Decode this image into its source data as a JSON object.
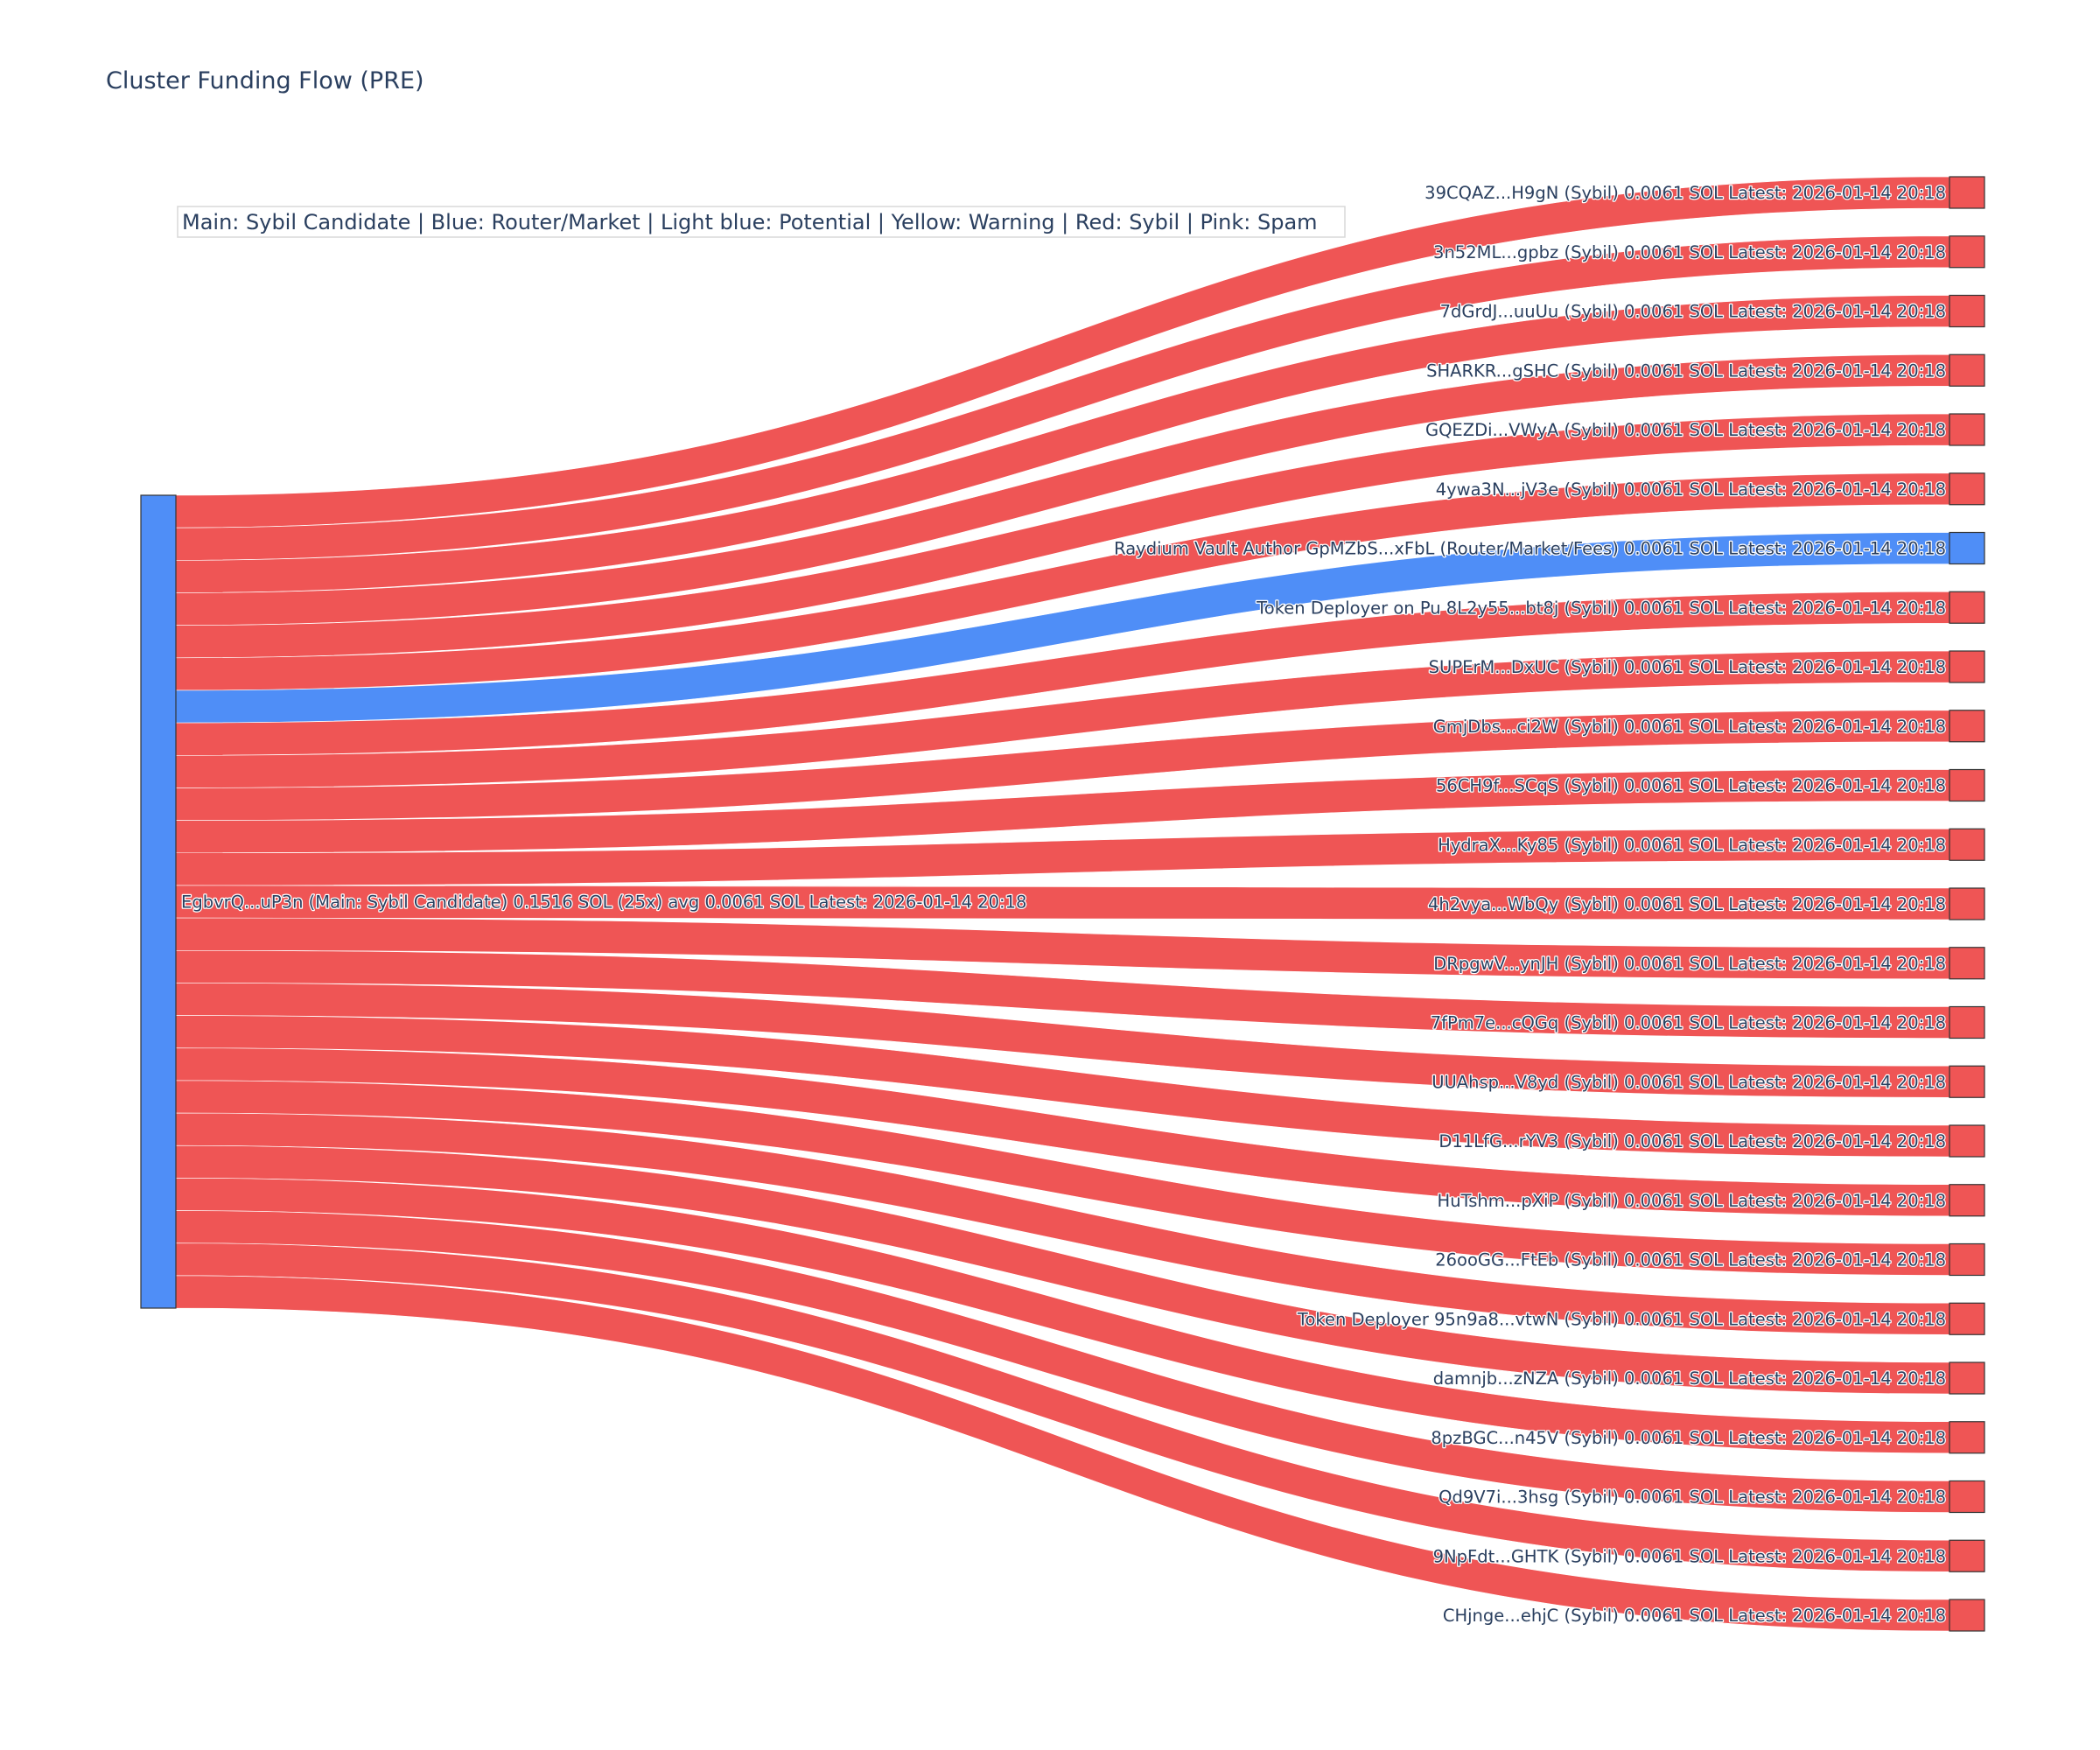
{
  "chart_data": {
    "type": "sankey",
    "title": "Cluster Funding Flow (PRE)",
    "legend_note": "Main: Sybil Candidate  |  Blue: Router/Market | Light blue: Potential | Yellow: Warning | Red: Sybil | Pink: Spam",
    "colors": {
      "main": "#4f8ef7",
      "router": "#4f8ef7",
      "sybil": "#ef5555",
      "node_outline": "#333333"
    },
    "source": {
      "label": "EgbvrQ...uP3n (Main: Sybil Candidate) 0.1516 SOL (25x) avg 0.0061 SOL Latest: 2026-01-14 20:18",
      "category": "main",
      "total": 0.1516
    },
    "targets": [
      {
        "label": "39CQAZ...H9gN (Sybil) 0.0061 SOL Latest: 2026-01-14 20:18",
        "category": "sybil",
        "value": 0.0061
      },
      {
        "label": "3n52ML...gpbz (Sybil) 0.0061 SOL Latest: 2026-01-14 20:18",
        "category": "sybil",
        "value": 0.0061
      },
      {
        "label": "7dGrdJ...uuUu (Sybil) 0.0061 SOL Latest: 2026-01-14 20:18",
        "category": "sybil",
        "value": 0.0061
      },
      {
        "label": "SHARKR...gSHC (Sybil) 0.0061 SOL Latest: 2026-01-14 20:18",
        "category": "sybil",
        "value": 0.0061
      },
      {
        "label": "GQEZDi...VWyA (Sybil) 0.0061 SOL Latest: 2026-01-14 20:18",
        "category": "sybil",
        "value": 0.0061
      },
      {
        "label": "4ywa3N...jV3e (Sybil) 0.0061 SOL Latest: 2026-01-14 20:18",
        "category": "sybil",
        "value": 0.0061
      },
      {
        "label": "Raydium Vault Author GpMZbS...xFbL (Router/Market/Fees) 0.0061 SOL Latest: 2026-01-14 20:18",
        "category": "router",
        "value": 0.0061
      },
      {
        "label": "Token Deployer on Pu 8L2y55...bt8j (Sybil) 0.0061 SOL Latest: 2026-01-14 20:18",
        "category": "sybil",
        "value": 0.0061
      },
      {
        "label": "SUPErM...DxUC (Sybil) 0.0061 SOL Latest: 2026-01-14 20:18",
        "category": "sybil",
        "value": 0.0061
      },
      {
        "label": "GmjDbs...ci2W (Sybil) 0.0061 SOL Latest: 2026-01-14 20:18",
        "category": "sybil",
        "value": 0.0061
      },
      {
        "label": "56CH9f...SCqS (Sybil) 0.0061 SOL Latest: 2026-01-14 20:18",
        "category": "sybil",
        "value": 0.0061
      },
      {
        "label": "HydraX...Ky85 (Sybil) 0.0061 SOL Latest: 2026-01-14 20:18",
        "category": "sybil",
        "value": 0.0061
      },
      {
        "label": "4h2vya...WbQy (Sybil) 0.0061 SOL Latest: 2026-01-14 20:18",
        "category": "sybil",
        "value": 0.0061
      },
      {
        "label": "DRpgwV...ynJH (Sybil) 0.0061 SOL Latest: 2026-01-14 20:18",
        "category": "sybil",
        "value": 0.0061
      },
      {
        "label": "7fPm7e...cQGq (Sybil) 0.0061 SOL Latest: 2026-01-14 20:18",
        "category": "sybil",
        "value": 0.0061
      },
      {
        "label": "UUAhsp...V8yd (Sybil) 0.0061 SOL Latest: 2026-01-14 20:18",
        "category": "sybil",
        "value": 0.0061
      },
      {
        "label": "D11LfG...rYV3 (Sybil) 0.0061 SOL Latest: 2026-01-14 20:18",
        "category": "sybil",
        "value": 0.0061
      },
      {
        "label": "HuTshm...pXiP (Sybil) 0.0061 SOL Latest: 2026-01-14 20:18",
        "category": "sybil",
        "value": 0.0061
      },
      {
        "label": "26ooGG...FtEb (Sybil) 0.0061 SOL Latest: 2026-01-14 20:18",
        "category": "sybil",
        "value": 0.0061
      },
      {
        "label": "Token Deployer 95n9a8...vtwN (Sybil) 0.0061 SOL Latest: 2026-01-14 20:18",
        "category": "sybil",
        "value": 0.0061
      },
      {
        "label": "damnjb...zNZA (Sybil) 0.0061 SOL Latest: 2026-01-14 20:18",
        "category": "sybil",
        "value": 0.0061
      },
      {
        "label": "8pzBGC...n45V (Sybil) 0.0061 SOL Latest: 2026-01-14 20:18",
        "category": "sybil",
        "value": 0.0061
      },
      {
        "label": "Qd9V7i...3hsg (Sybil) 0.0061 SOL Latest: 2026-01-14 20:18",
        "category": "sybil",
        "value": 0.0061
      },
      {
        "label": "9NpFdt...GHTK (Sybil) 0.0061 SOL Latest: 2026-01-14 20:18",
        "category": "sybil",
        "value": 0.0061
      },
      {
        "label": "CHjnge...ehjC (Sybil) 0.0061 SOL Latest: 2026-01-14 20:18",
        "category": "sybil",
        "value": 0.0061
      }
    ]
  }
}
